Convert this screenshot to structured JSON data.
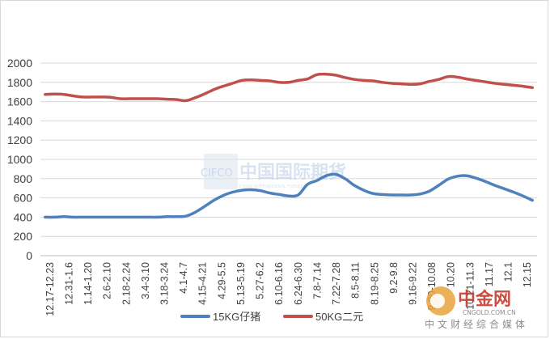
{
  "chart_data": {
    "type": "line",
    "title": "",
    "xlabel": "",
    "ylabel": "",
    "ylim": [
      0,
      2000
    ],
    "y_ticks": [
      0,
      200,
      400,
      600,
      800,
      1000,
      1200,
      1400,
      1600,
      1800,
      2000
    ],
    "grid": "horizontal",
    "legend_position": "bottom",
    "x_tick_labels": [
      "12.17-12.23",
      "12.31-1.6",
      "1.14-1.20",
      "2.6-2.10",
      "2.18-2.24",
      "3.4-3.10",
      "3.18-3.24",
      "4.1-4.7",
      "4.15-4.21",
      "4.29-5.5",
      "5.13-5.19",
      "5.27-6.2",
      "6.10-6.16",
      "6.24-6.30",
      "7.8-7.14",
      "7.22-7.28",
      "8.5-8.11",
      "8.19-8.25",
      "9.2-9.8",
      "9.16-9.22",
      "9.30-10.08",
      "10.20",
      "10.21-11.3",
      "11.17",
      "12.1",
      "12.15"
    ],
    "series": [
      {
        "name": "15KG仔猪",
        "color": "#4f81bd",
        "values": [
          400,
          400,
          405,
          400,
          400,
          400,
          400,
          400,
          400,
          400,
          400,
          400,
          400,
          405,
          405,
          410,
          450,
          510,
          575,
          625,
          660,
          680,
          685,
          675,
          650,
          635,
          620,
          630,
          740,
          780,
          830,
          845,
          800,
          730,
          680,
          645,
          635,
          630,
          630,
          630,
          640,
          670,
          730,
          795,
          825,
          830,
          805,
          770,
          730,
          695,
          660,
          620,
          575
        ]
      },
      {
        "name": "50KG二元",
        "color": "#c0504d",
        "values": [
          1675,
          1678,
          1675,
          1660,
          1648,
          1648,
          1648,
          1645,
          1630,
          1630,
          1630,
          1630,
          1630,
          1625,
          1622,
          1610,
          1640,
          1680,
          1725,
          1760,
          1790,
          1820,
          1825,
          1820,
          1815,
          1800,
          1800,
          1820,
          1835,
          1880,
          1885,
          1875,
          1850,
          1830,
          1820,
          1815,
          1800,
          1790,
          1785,
          1780,
          1785,
          1810,
          1830,
          1860,
          1855,
          1835,
          1820,
          1805,
          1790,
          1780,
          1770,
          1760,
          1745
        ]
      }
    ]
  },
  "watermarks": {
    "center_abbr": "CIFCO",
    "center_name": "中国国际期货",
    "center_sub": "CHINA INTERNATIONAL FUTURES",
    "corner_brand": "中金网",
    "corner_url": "CNGOLD.COM.CN",
    "corner_slogan": "中文财经综合媒体"
  }
}
